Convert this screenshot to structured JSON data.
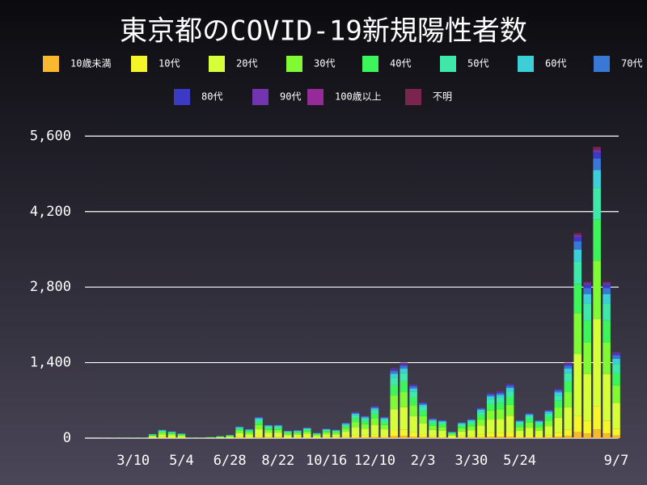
{
  "chart_data": {
    "type": "stacked_bar",
    "title": "東京都のCOVID-19新規陽性者数",
    "categories": [
      null,
      null,
      null,
      null,
      null,
      "3/10",
      null,
      null,
      null,
      null,
      "5/4",
      null,
      null,
      null,
      null,
      "6/28",
      null,
      null,
      null,
      null,
      "8/22",
      null,
      null,
      null,
      null,
      "10/16",
      null,
      null,
      null,
      null,
      "12/10",
      null,
      null,
      null,
      null,
      "2/3",
      null,
      null,
      null,
      null,
      "3/30",
      null,
      null,
      null,
      null,
      "5/24",
      null,
      null,
      null,
      null,
      null,
      null,
      null,
      null,
      null,
      "9/7"
    ],
    "ylim": [
      0,
      5800
    ],
    "yticks": [
      0,
      {
        "value": 1400,
        "label": "1,400"
      },
      {
        "value": 2800,
        "label": "2,800"
      },
      {
        "value": 4200,
        "label": "4,200"
      },
      {
        "value": 5600,
        "label": "5,600"
      }
    ],
    "grid": true,
    "series": [
      {
        "name": "10歳未満",
        "color": "#f9b92e",
        "values": [
          0,
          0,
          0,
          0,
          0,
          0,
          0,
          2,
          5,
          4,
          3,
          0,
          0,
          1,
          1,
          2,
          7,
          5,
          12,
          8,
          8,
          4,
          5,
          6,
          3,
          5,
          5,
          9,
          15,
          13,
          18,
          12,
          39,
          42,
          30,
          20,
          11,
          10,
          4,
          9,
          11,
          17,
          25,
          26,
          30,
          10,
          14,
          10,
          16,
          28,
          42,
          114,
          87,
          162,
          87,
          48
        ]
      },
      {
        "name": "10代",
        "color": "#f5f52a",
        "values": [
          0,
          0,
          0,
          0,
          0,
          1,
          1,
          6,
          13,
          10,
          7,
          1,
          1,
          2,
          3,
          5,
          18,
          14,
          32,
          20,
          20,
          11,
          12,
          16,
          8,
          14,
          13,
          23,
          39,
          34,
          48,
          32,
          104,
          112,
          80,
          54,
          30,
          27,
          10,
          24,
          29,
          46,
          67,
          70,
          81,
          27,
          38,
          27,
          42,
          74,
          112,
          304,
          232,
          432,
          232,
          128
        ]
      },
      {
        "name": "20代",
        "color": "#d6ff3a",
        "values": [
          0,
          0,
          1,
          2,
          2,
          3,
          3,
          24,
          48,
          39,
          27,
          3,
          3,
          6,
          12,
          18,
          66,
          51,
          120,
          75,
          75,
          42,
          45,
          60,
          30,
          54,
          48,
          87,
          147,
          126,
          180,
          120,
          390,
          420,
          300,
          201,
          111,
          102,
          36,
          90,
          108,
          171,
          252,
          261,
          303,
          102,
          141,
          102,
          159,
          276,
          420,
          1140,
          870,
          1620,
          870,
          480
        ]
      },
      {
        "name": "30代",
        "color": "#80fa34",
        "values": [
          0,
          0,
          0,
          1,
          1,
          2,
          2,
          16,
          32,
          26,
          18,
          2,
          2,
          4,
          8,
          12,
          44,
          34,
          80,
          50,
          50,
          28,
          30,
          40,
          20,
          36,
          32,
          58,
          98,
          84,
          120,
          80,
          260,
          280,
          200,
          134,
          74,
          68,
          24,
          60,
          72,
          114,
          168,
          174,
          202,
          68,
          94,
          68,
          106,
          184,
          280,
          760,
          580,
          1080,
          580,
          320
        ]
      },
      {
        "name": "40代",
        "color": "#3cf55a",
        "values": [
          0,
          0,
          0,
          1,
          1,
          1,
          1,
          11,
          22,
          18,
          13,
          1,
          1,
          3,
          6,
          8,
          31,
          24,
          56,
          35,
          35,
          20,
          21,
          28,
          14,
          25,
          22,
          41,
          69,
          59,
          84,
          56,
          182,
          196,
          140,
          94,
          52,
          48,
          17,
          42,
          50,
          80,
          118,
          122,
          141,
          48,
          66,
          48,
          74,
          129,
          196,
          532,
          406,
          756,
          406,
          224
        ]
      },
      {
        "name": "50代",
        "color": "#3de8a8",
        "values": [
          0,
          0,
          0,
          0,
          0,
          1,
          1,
          9,
          18,
          14,
          10,
          1,
          1,
          2,
          4,
          7,
          24,
          19,
          44,
          28,
          28,
          15,
          17,
          22,
          11,
          20,
          18,
          32,
          54,
          46,
          66,
          44,
          143,
          154,
          110,
          74,
          41,
          37,
          13,
          33,
          40,
          63,
          92,
          96,
          111,
          37,
          52,
          37,
          58,
          101,
          154,
          418,
          319,
          594,
          319,
          176
        ]
      },
      {
        "name": "60代",
        "color": "#3ccfd8",
        "values": [
          0,
          0,
          1,
          1,
          1,
          1,
          1,
          5,
          10,
          8,
          5,
          1,
          1,
          1,
          2,
          4,
          13,
          10,
          24,
          15,
          15,
          8,
          9,
          12,
          6,
          11,
          10,
          17,
          29,
          25,
          36,
          24,
          78,
          84,
          60,
          40,
          22,
          20,
          7,
          18,
          22,
          34,
          50,
          52,
          61,
          20,
          28,
          20,
          32,
          55,
          84,
          228,
          174,
          324,
          174,
          96
        ]
      },
      {
        "name": "70代",
        "color": "#3a78d8",
        "values": [
          0,
          0,
          0,
          0,
          0,
          1,
          1,
          3,
          6,
          5,
          4,
          0,
          0,
          1,
          2,
          2,
          9,
          7,
          16,
          10,
          10,
          6,
          6,
          8,
          4,
          7,
          6,
          12,
          20,
          17,
          24,
          16,
          52,
          56,
          40,
          27,
          15,
          14,
          5,
          12,
          14,
          23,
          34,
          35,
          40,
          14,
          19,
          14,
          21,
          37,
          56,
          152,
          116,
          216,
          116,
          64
        ]
      },
      {
        "name": "80代",
        "color": "#3a3ac4",
        "values": [
          0,
          0,
          0,
          0,
          0,
          0,
          0,
          2,
          3,
          3,
          2,
          0,
          0,
          0,
          1,
          1,
          4,
          3,
          8,
          5,
          5,
          3,
          3,
          4,
          2,
          4,
          3,
          6,
          10,
          8,
          12,
          8,
          26,
          28,
          20,
          13,
          7,
          7,
          2,
          6,
          7,
          11,
          17,
          17,
          20,
          7,
          9,
          7,
          11,
          18,
          28,
          76,
          58,
          108,
          58,
          32
        ]
      },
      {
        "name": "90代",
        "color": "#7334b0",
        "values": [
          0,
          0,
          0,
          0,
          0,
          0,
          0,
          1,
          2,
          1,
          1,
          0,
          0,
          0,
          0,
          1,
          2,
          2,
          4,
          3,
          3,
          1,
          2,
          2,
          1,
          2,
          2,
          3,
          5,
          4,
          6,
          4,
          13,
          14,
          10,
          7,
          4,
          3,
          1,
          3,
          4,
          6,
          8,
          9,
          10,
          3,
          5,
          3,
          5,
          9,
          14,
          38,
          29,
          54,
          29,
          16
        ]
      },
      {
        "name": "100歳以上",
        "color": "#962a98",
        "values": [
          0,
          0,
          0,
          0,
          0,
          0,
          0,
          0,
          0,
          0,
          0,
          0,
          0,
          0,
          0,
          0,
          0,
          0,
          0,
          0,
          0,
          0,
          0,
          0,
          0,
          0,
          0,
          0,
          0,
          0,
          0,
          0,
          1,
          1,
          0,
          0,
          0,
          0,
          0,
          0,
          0,
          0,
          0,
          0,
          0,
          0,
          0,
          0,
          0,
          0,
          0,
          1,
          0,
          1,
          0,
          0
        ]
      },
      {
        "name": "不明",
        "color": "#7a2450",
        "values": [
          0,
          0,
          0,
          0,
          0,
          0,
          0,
          1,
          2,
          1,
          1,
          0,
          0,
          0,
          0,
          1,
          2,
          2,
          4,
          3,
          3,
          1,
          2,
          2,
          1,
          2,
          2,
          3,
          5,
          4,
          6,
          4,
          13,
          14,
          10,
          7,
          4,
          3,
          1,
          3,
          4,
          6,
          8,
          9,
          10,
          3,
          5,
          3,
          5,
          9,
          14,
          38,
          29,
          54,
          29,
          16
        ]
      }
    ]
  }
}
